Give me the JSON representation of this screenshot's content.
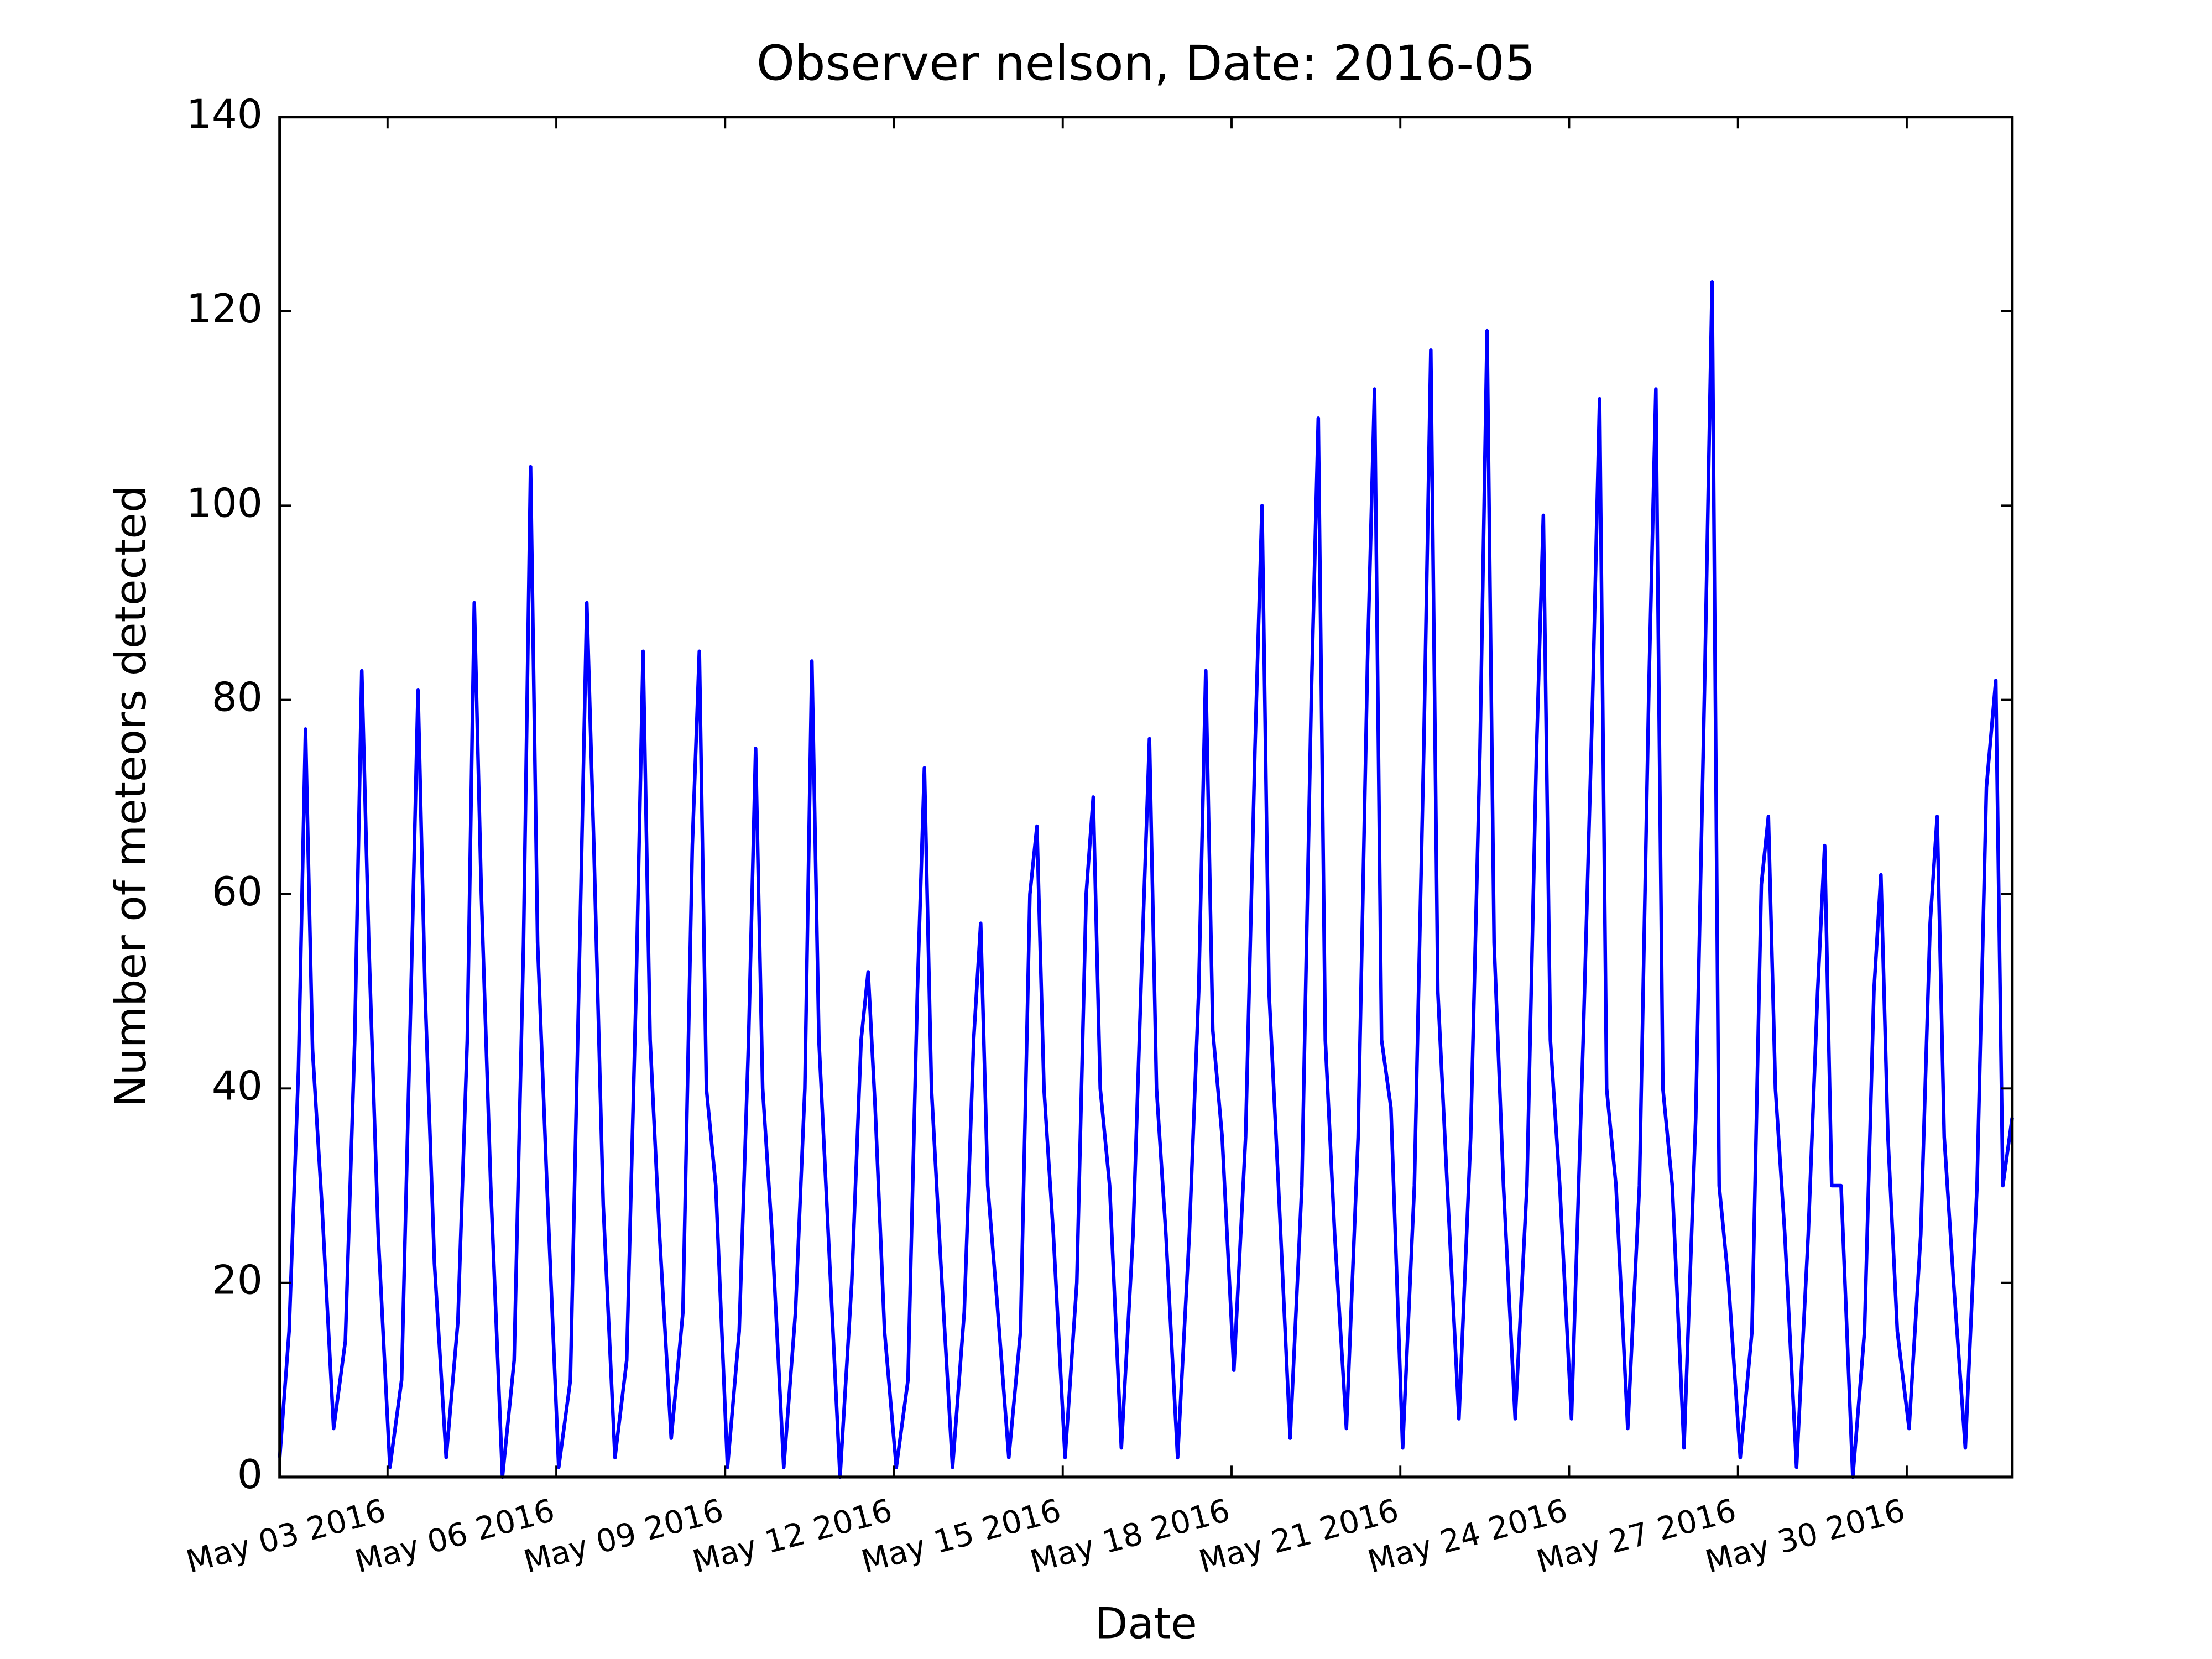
{
  "chart_data": {
    "type": "line",
    "title": "Observer nelson, Date: 2016-05",
    "xlabel": "Date",
    "ylabel": "Number of meteors detected",
    "color": "#0000ff",
    "grid": false,
    "xlim": [
      "2016-05-01 02:00",
      "2016-05-31 21:00"
    ],
    "xticks": [
      {
        "value": "2016-05-03",
        "label": "May 03 2016"
      },
      {
        "value": "2016-05-06",
        "label": "May 06 2016"
      },
      {
        "value": "2016-05-09",
        "label": "May 09 2016"
      },
      {
        "value": "2016-05-12",
        "label": "May 12 2016"
      },
      {
        "value": "2016-05-15",
        "label": "May 15 2016"
      },
      {
        "value": "2016-05-18",
        "label": "May 18 2016"
      },
      {
        "value": "2016-05-21",
        "label": "May 21 2016"
      },
      {
        "value": "2016-05-24",
        "label": "May 24 2016"
      },
      {
        "value": "2016-05-27",
        "label": "May 27 2016"
      },
      {
        "value": "2016-05-30",
        "label": "May 30 2016"
      }
    ],
    "ylim": [
      0,
      140
    ],
    "yticks": [
      0,
      20,
      40,
      60,
      80,
      100,
      120,
      140
    ],
    "x": [
      "2016-05-01 02:00",
      "2016-05-01 06:00",
      "2016-05-01 10:00",
      "2016-05-01 13:00",
      "2016-05-01 16:00",
      "2016-05-01 20:00",
      "2016-05-02 01:00",
      "2016-05-02 06:00",
      "2016-05-02 10:00",
      "2016-05-02 13:00",
      "2016-05-02 16:00",
      "2016-05-02 20:00",
      "2016-05-03 01:00",
      "2016-05-03 06:00",
      "2016-05-03 10:00",
      "2016-05-03 13:00",
      "2016-05-03 16:00",
      "2016-05-03 20:00",
      "2016-05-04 01:00",
      "2016-05-04 06:00",
      "2016-05-04 10:00",
      "2016-05-04 13:00",
      "2016-05-04 16:00",
      "2016-05-04 20:00",
      "2016-05-05 01:00",
      "2016-05-05 06:00",
      "2016-05-05 10:00",
      "2016-05-05 13:00",
      "2016-05-05 16:00",
      "2016-05-05 20:00",
      "2016-05-06 01:00",
      "2016-05-06 06:00",
      "2016-05-06 10:00",
      "2016-05-06 13:00",
      "2016-05-06 16:00",
      "2016-05-06 20:00",
      "2016-05-07 01:00",
      "2016-05-07 06:00",
      "2016-05-07 10:00",
      "2016-05-07 13:00",
      "2016-05-07 16:00",
      "2016-05-07 20:00",
      "2016-05-08 01:00",
      "2016-05-08 06:00",
      "2016-05-08 10:00",
      "2016-05-08 13:00",
      "2016-05-08 16:00",
      "2016-05-08 20:00",
      "2016-05-09 01:00",
      "2016-05-09 06:00",
      "2016-05-09 10:00",
      "2016-05-09 13:00",
      "2016-05-09 16:00",
      "2016-05-09 20:00",
      "2016-05-10 01:00",
      "2016-05-10 06:00",
      "2016-05-10 10:00",
      "2016-05-10 13:00",
      "2016-05-10 16:00",
      "2016-05-10 20:00",
      "2016-05-11 01:00",
      "2016-05-11 06:00",
      "2016-05-11 10:00",
      "2016-05-11 13:00",
      "2016-05-11 16:00",
      "2016-05-11 20:00",
      "2016-05-12 01:00",
      "2016-05-12 06:00",
      "2016-05-12 10:00",
      "2016-05-12 13:00",
      "2016-05-12 16:00",
      "2016-05-12 20:00",
      "2016-05-13 01:00",
      "2016-05-13 06:00",
      "2016-05-13 10:00",
      "2016-05-13 13:00",
      "2016-05-13 16:00",
      "2016-05-13 20:00",
      "2016-05-14 01:00",
      "2016-05-14 06:00",
      "2016-05-14 10:00",
      "2016-05-14 13:00",
      "2016-05-14 16:00",
      "2016-05-14 20:00",
      "2016-05-15 01:00",
      "2016-05-15 06:00",
      "2016-05-15 10:00",
      "2016-05-15 13:00",
      "2016-05-15 16:00",
      "2016-05-15 20:00",
      "2016-05-16 01:00",
      "2016-05-16 06:00",
      "2016-05-16 10:00",
      "2016-05-16 13:00",
      "2016-05-16 16:00",
      "2016-05-16 20:00",
      "2016-05-17 01:00",
      "2016-05-17 06:00",
      "2016-05-17 10:00",
      "2016-05-17 13:00",
      "2016-05-17 16:00",
      "2016-05-17 20:00",
      "2016-05-18 01:00",
      "2016-05-18 06:00",
      "2016-05-18 10:00",
      "2016-05-18 13:00",
      "2016-05-18 16:00",
      "2016-05-18 20:00",
      "2016-05-19 01:00",
      "2016-05-19 06:00",
      "2016-05-19 10:00",
      "2016-05-19 13:00",
      "2016-05-19 16:00",
      "2016-05-19 20:00",
      "2016-05-20 01:00",
      "2016-05-20 06:00",
      "2016-05-20 10:00",
      "2016-05-20 13:00",
      "2016-05-20 16:00",
      "2016-05-20 20:00",
      "2016-05-21 01:00",
      "2016-05-21 06:00",
      "2016-05-21 10:00",
      "2016-05-21 13:00",
      "2016-05-21 16:00",
      "2016-05-21 20:00",
      "2016-05-22 01:00",
      "2016-05-22 06:00",
      "2016-05-22 10:00",
      "2016-05-22 13:00",
      "2016-05-22 16:00",
      "2016-05-22 20:00",
      "2016-05-23 01:00",
      "2016-05-23 06:00",
      "2016-05-23 10:00",
      "2016-05-23 13:00",
      "2016-05-23 16:00",
      "2016-05-23 20:00",
      "2016-05-24 01:00",
      "2016-05-24 06:00",
      "2016-05-24 10:00",
      "2016-05-24 13:00",
      "2016-05-24 16:00",
      "2016-05-24 20:00",
      "2016-05-25 01:00",
      "2016-05-25 06:00",
      "2016-05-25 10:00",
      "2016-05-25 13:00",
      "2016-05-25 16:00",
      "2016-05-25 20:00",
      "2016-05-26 01:00",
      "2016-05-26 06:00",
      "2016-05-26 10:00",
      "2016-05-26 13:00",
      "2016-05-26 16:00",
      "2016-05-26 20:00",
      "2016-05-27 01:00",
      "2016-05-27 06:00",
      "2016-05-27 10:00",
      "2016-05-27 13:00",
      "2016-05-27 16:00",
      "2016-05-27 20:00",
      "2016-05-28 01:00",
      "2016-05-28 06:00",
      "2016-05-28 10:00",
      "2016-05-28 13:00",
      "2016-05-28 16:00",
      "2016-05-28 20:00",
      "2016-05-29 01:00",
      "2016-05-29 06:00",
      "2016-05-29 10:00",
      "2016-05-29 13:00",
      "2016-05-29 16:00",
      "2016-05-29 20:00",
      "2016-05-30 01:00",
      "2016-05-30 06:00",
      "2016-05-30 10:00",
      "2016-05-30 13:00",
      "2016-05-30 16:00",
      "2016-05-30 20:00",
      "2016-05-31 01:00",
      "2016-05-31 06:00",
      "2016-05-31 10:00",
      "2016-05-31 14:00",
      "2016-05-31 17:00",
      "2016-05-31 21:00"
    ],
    "values": [
      2,
      15,
      42,
      77,
      44,
      28,
      5,
      14,
      45,
      83,
      55,
      25,
      1,
      10,
      50,
      81,
      50,
      22,
      2,
      16,
      45,
      90,
      60,
      30,
      0,
      12,
      55,
      104,
      55,
      30,
      1,
      10,
      55,
      90,
      65,
      28,
      2,
      12,
      50,
      85,
      45,
      25,
      4,
      17,
      65,
      85,
      40,
      30,
      1,
      15,
      45,
      75,
      40,
      25,
      1,
      17,
      40,
      84,
      45,
      25,
      0,
      20,
      45,
      52,
      38,
      15,
      1,
      10,
      50,
      73,
      40,
      22,
      1,
      17,
      45,
      57,
      30,
      18,
      2,
      15,
      60,
      67,
      40,
      25,
      2,
      20,
      60,
      70,
      40,
      30,
      3,
      25,
      55,
      76,
      40,
      25,
      2,
      25,
      50,
      83,
      46,
      35,
      11,
      35,
      75,
      100,
      50,
      30,
      4,
      30,
      80,
      109,
      45,
      25,
      5,
      35,
      84,
      112,
      45,
      38,
      3,
      30,
      75,
      116,
      50,
      30,
      6,
      35,
      75,
      118,
      55,
      30,
      6,
      30,
      74,
      99,
      45,
      30,
      6,
      45,
      80,
      111,
      40,
      30,
      5,
      30,
      81,
      112,
      40,
      30,
      3,
      37,
      84,
      123,
      30,
      20,
      2,
      15,
      61,
      68,
      40,
      25,
      1,
      25,
      50,
      65,
      30,
      30,
      0,
      15,
      50,
      62,
      35,
      15,
      5,
      25,
      57,
      68,
      35,
      20,
      3,
      30,
      71,
      82,
      30,
      37
    ]
  }
}
